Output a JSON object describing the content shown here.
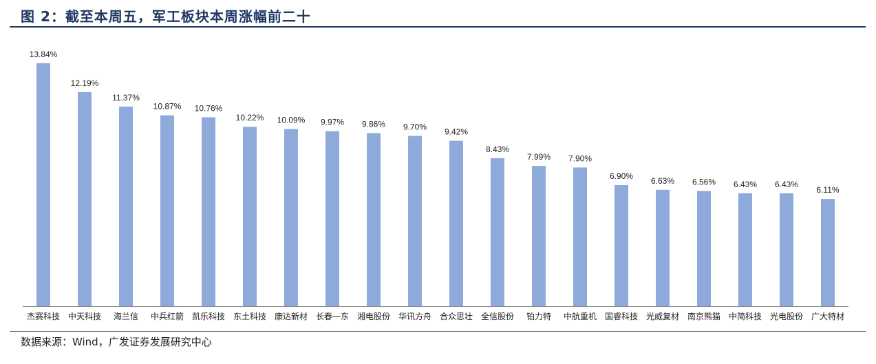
{
  "figure": {
    "title": "图 2：截至本周五，军工板块本周涨幅前二十",
    "source": "数据来源：Wind，广发证券发展研究中心"
  },
  "colors": {
    "bar": "#8eaadb",
    "title": "#1f3864",
    "axis": "#888888"
  },
  "chart_data": {
    "type": "bar",
    "title": "",
    "xlabel": "",
    "ylabel": "",
    "ylim": [
      0,
      14.5
    ],
    "grid": false,
    "legend": "none",
    "categories": [
      "杰赛科技",
      "中天科技",
      "海兰信",
      "中兵红箭",
      "凯乐科技",
      "东土科技",
      "康达新材",
      "长春一东",
      "湘电股份",
      "华讯方舟",
      "合众思壮",
      "全信股份",
      "铂力特",
      "中航重机",
      "国睿科技",
      "光威复材",
      "南京熊猫",
      "中简科技",
      "光电股份",
      "广大特材"
    ],
    "values": [
      13.84,
      12.19,
      11.37,
      10.87,
      10.76,
      10.22,
      10.09,
      9.97,
      9.86,
      9.7,
      9.42,
      8.43,
      7.99,
      7.9,
      6.9,
      6.63,
      6.56,
      6.43,
      6.43,
      6.11
    ],
    "value_labels": [
      "13.84%",
      "12.19%",
      "11.37%",
      "10.87%",
      "10.76%",
      "10.22%",
      "10.09%",
      "9.97%",
      "9.86%",
      "9.70%",
      "9.42%",
      "8.43%",
      "7.99%",
      "7.90%",
      "6.90%",
      "6.63%",
      "6.56%",
      "6.43%",
      "6.43%",
      "6.11%"
    ]
  }
}
